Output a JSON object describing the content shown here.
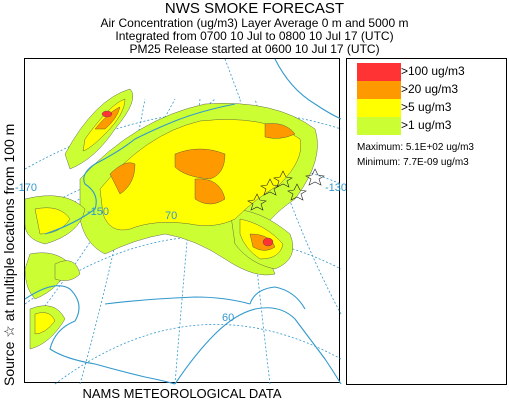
{
  "header": {
    "title": "NWS SMOKE FORECAST",
    "line1": "Air Concentration (ug/m3) Layer Average     0 m and  5000 m",
    "line2": "Integrated from 0700 10 Jul to 0800 10 Jul 17 (UTC)",
    "line3": "PM25 Release started at 0600 10 Jul 17 (UTC)"
  },
  "side_label": "Source ☆ at multiple locations    from   100 m",
  "footer": "NAMS METEOROLOGICAL DATA",
  "legend": {
    "items": [
      {
        "label": ">100 ug/m3",
        "color": "#ff3333"
      },
      {
        "label": ">20 ug/m3",
        "color": "#ff9900"
      },
      {
        "label": ">5 ug/m3",
        "color": "#ffff00"
      },
      {
        "label": ">1 ug/m3",
        "color": "#ccff33"
      }
    ],
    "maximum": "Maximum: 5.1E+02 ug/m3",
    "minimum": "Minimum: 7.7E-09 ug/m3"
  },
  "map": {
    "labels": [
      "-170",
      "-150",
      "-130",
      "70",
      "60"
    ],
    "line_color": "#3399cc",
    "coast_color": "#3399cc",
    "source_symbol": "☆"
  }
}
